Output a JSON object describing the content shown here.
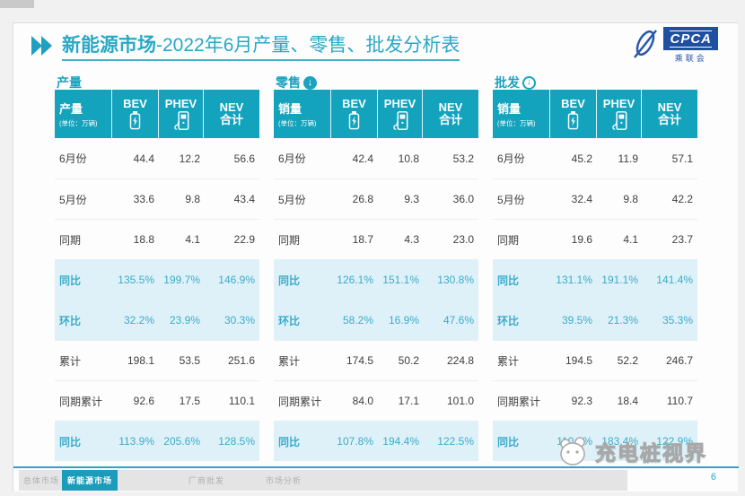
{
  "title": {
    "bold": "新能源市场",
    "rest": "-2022年6月产量、零售、批发分析表"
  },
  "logo": {
    "name": "CPCA",
    "sub": "乘联会"
  },
  "unit_label": "(单位：万辆)",
  "col_headers": {
    "col1": "BEV",
    "col2": "PHEV",
    "col3_line1": "NEV",
    "col3_line2": "合计"
  },
  "colors": {
    "teal": "#14a3bd",
    "title_teal": "#29a8c6",
    "highlight_bg": "#dff1f8",
    "highlight_text": "#39abca",
    "active_tab": "#1b9cba"
  },
  "chart_data": [
    {
      "type": "table",
      "section": "产量",
      "arrow": "none",
      "measure_label": "产量",
      "columns": [
        "BEV",
        "PHEV",
        "NEV合计"
      ],
      "rows": [
        {
          "label": "6月份",
          "values": [
            "44.4",
            "12.2",
            "56.6"
          ],
          "highlight": false
        },
        {
          "label": "5月份",
          "values": [
            "33.6",
            "9.8",
            "43.4"
          ],
          "highlight": false
        },
        {
          "label": "同期",
          "values": [
            "18.8",
            "4.1",
            "22.9"
          ],
          "highlight": false
        },
        {
          "label": "同比",
          "values": [
            "135.5%",
            "199.7%",
            "146.9%"
          ],
          "highlight": true
        },
        {
          "label": "环比",
          "values": [
            "32.2%",
            "23.9%",
            "30.3%"
          ],
          "highlight": true
        },
        {
          "label": "累计",
          "values": [
            "198.1",
            "53.5",
            "251.6"
          ],
          "highlight": false
        },
        {
          "label": "同期累计",
          "values": [
            "92.6",
            "17.5",
            "110.1"
          ],
          "highlight": false
        },
        {
          "label": "同比",
          "values": [
            "113.9%",
            "205.6%",
            "128.5%"
          ],
          "highlight": true
        }
      ]
    },
    {
      "type": "table",
      "section": "零售",
      "arrow": "filled",
      "measure_label": "销量",
      "columns": [
        "BEV",
        "PHEV",
        "NEV合计"
      ],
      "rows": [
        {
          "label": "6月份",
          "values": [
            "42.4",
            "10.8",
            "53.2"
          ],
          "highlight": false
        },
        {
          "label": "5月份",
          "values": [
            "26.8",
            "9.3",
            "36.0"
          ],
          "highlight": false
        },
        {
          "label": "同期",
          "values": [
            "18.7",
            "4.3",
            "23.0"
          ],
          "highlight": false
        },
        {
          "label": "同比",
          "values": [
            "126.1%",
            "151.1%",
            "130.8%"
          ],
          "highlight": true
        },
        {
          "label": "环比",
          "values": [
            "58.2%",
            "16.9%",
            "47.6%"
          ],
          "highlight": true
        },
        {
          "label": "累计",
          "values": [
            "174.5",
            "50.2",
            "224.8"
          ],
          "highlight": false
        },
        {
          "label": "同期累计",
          "values": [
            "84.0",
            "17.1",
            "101.0"
          ],
          "highlight": false
        },
        {
          "label": "同比",
          "values": [
            "107.8%",
            "194.4%",
            "122.5%"
          ],
          "highlight": true
        }
      ]
    },
    {
      "type": "table",
      "section": "批发",
      "arrow": "outline",
      "measure_label": "销量",
      "columns": [
        "BEV",
        "PHEV",
        "NEV合计"
      ],
      "rows": [
        {
          "label": "6月份",
          "values": [
            "45.2",
            "11.9",
            "57.1"
          ],
          "highlight": false
        },
        {
          "label": "5月份",
          "values": [
            "32.4",
            "9.8",
            "42.2"
          ],
          "highlight": false
        },
        {
          "label": "同期",
          "values": [
            "19.6",
            "4.1",
            "23.7"
          ],
          "highlight": false
        },
        {
          "label": "同比",
          "values": [
            "131.1%",
            "191.1%",
            "141.4%"
          ],
          "highlight": true
        },
        {
          "label": "环比",
          "values": [
            "39.5%",
            "21.3%",
            "35.3%"
          ],
          "highlight": true
        },
        {
          "label": "累计",
          "values": [
            "194.5",
            "52.2",
            "246.7"
          ],
          "highlight": false
        },
        {
          "label": "同期累计",
          "values": [
            "92.3",
            "18.4",
            "110.7"
          ],
          "highlight": false
        },
        {
          "label": "同比",
          "values": [
            "110.8%",
            "183.4%",
            "122.9%"
          ],
          "highlight": true
        }
      ]
    }
  ],
  "footer": {
    "tabs": [
      {
        "label": "总体市场",
        "active": false
      },
      {
        "label": "新能源市场",
        "active": true
      },
      {
        "label": "厂商批发",
        "active": false
      },
      {
        "label": "市场分析",
        "active": false
      }
    ],
    "page_number": "6",
    "brand_watermark": "充电桩视界"
  }
}
